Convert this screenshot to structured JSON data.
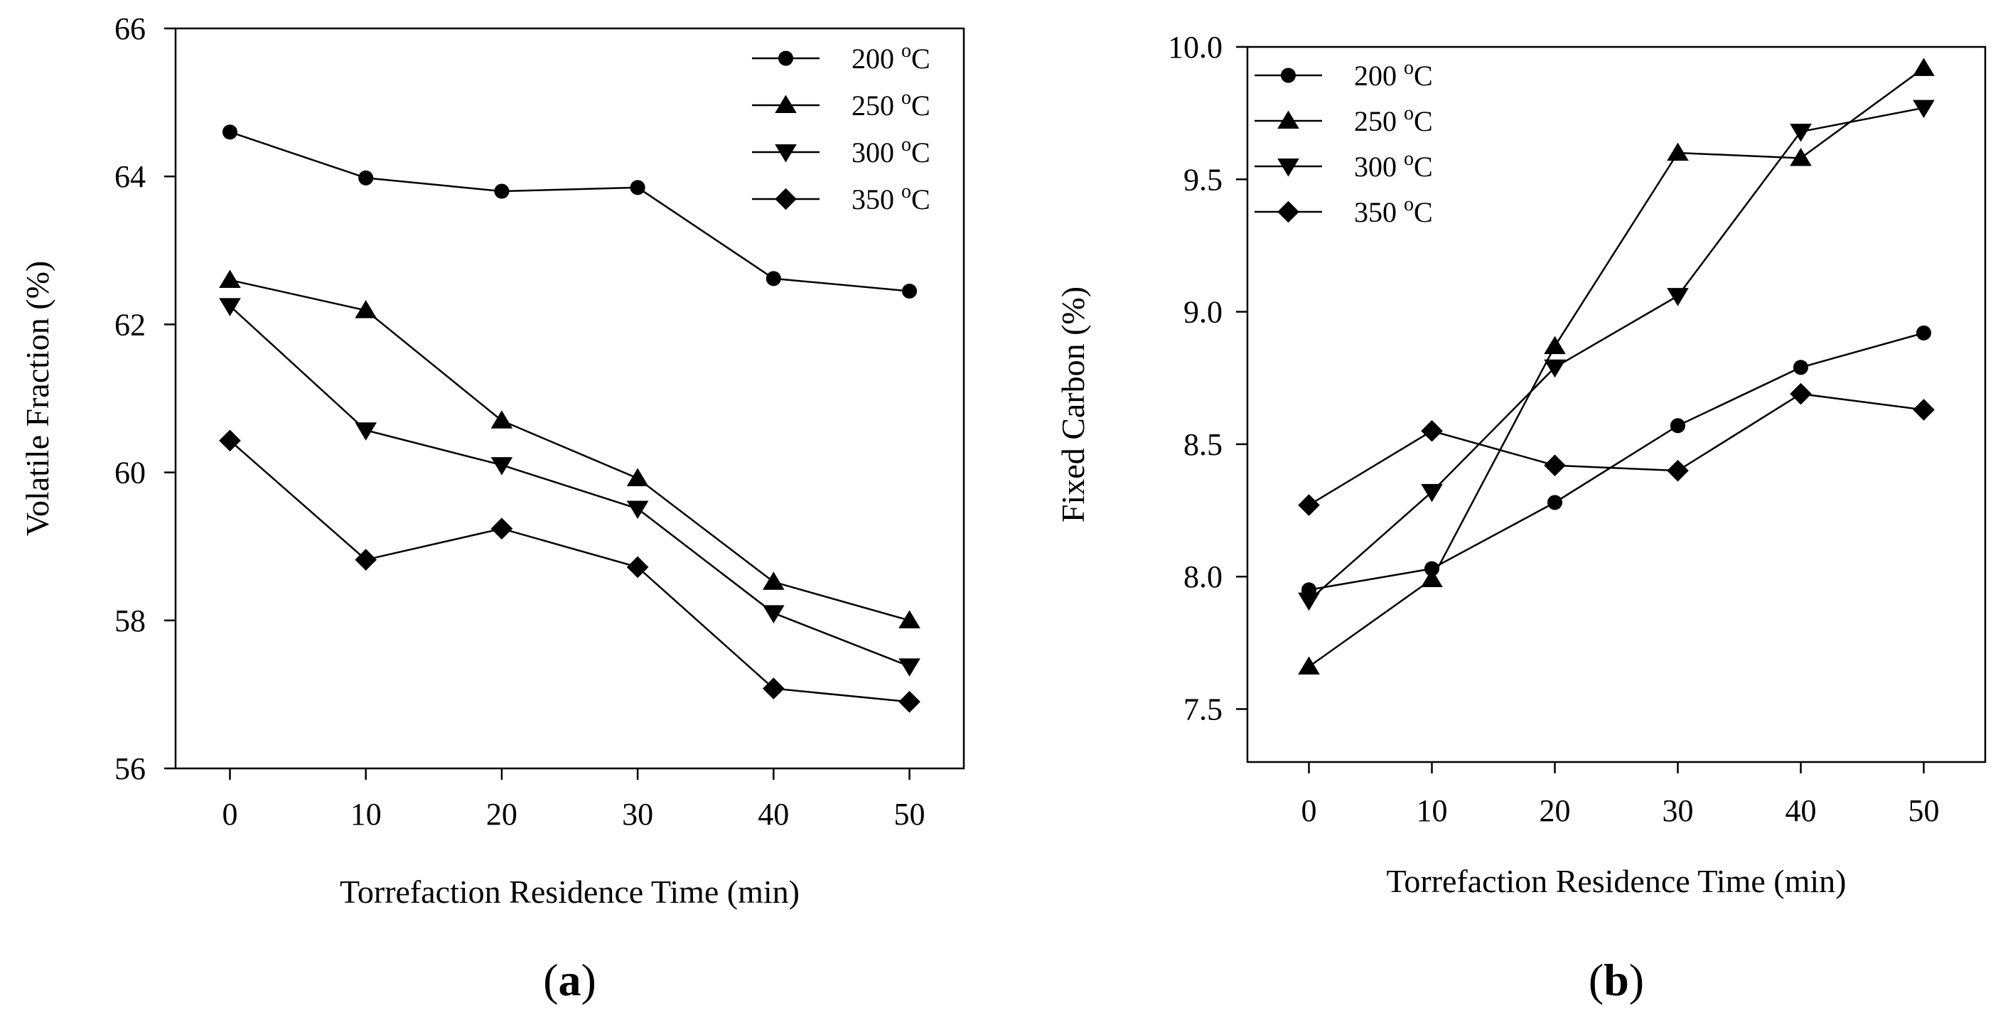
{
  "chart_data": [
    {
      "type": "line",
      "panel_label": "a",
      "xlabel": "Torrefaction Residence Time (min)",
      "ylabel": "Volatile Fraction (%)",
      "x": [
        0,
        10,
        20,
        30,
        40,
        50
      ],
      "xticks": [
        "0",
        "10",
        "20",
        "30",
        "40",
        "50"
      ],
      "xlim": [
        -4,
        54
      ],
      "yticks": [
        "56",
        "58",
        "60",
        "62",
        "64",
        "66"
      ],
      "ylim": [
        56,
        66
      ],
      "grid": false,
      "legend_position": "top-right",
      "series": [
        {
          "name": "200 °C",
          "marker": "circle",
          "values": [
            64.6,
            63.98,
            63.8,
            63.85,
            62.62,
            62.45
          ]
        },
        {
          "name": "250 °C",
          "marker": "triangle-up",
          "values": [
            62.6,
            62.19,
            60.7,
            59.92,
            58.52,
            58.0
          ]
        },
        {
          "name": "300 °C",
          "marker": "triangle-down",
          "values": [
            62.25,
            60.57,
            60.1,
            59.51,
            58.1,
            57.38
          ]
        },
        {
          "name": "350 °C",
          "marker": "diamond",
          "values": [
            60.43,
            58.82,
            59.24,
            58.72,
            57.08,
            56.9
          ]
        }
      ]
    },
    {
      "type": "line",
      "panel_label": "b",
      "xlabel": "Torrefaction Residence Time (min)",
      "ylabel": "Fixed Carbon (%)",
      "x": [
        0,
        10,
        20,
        30,
        40,
        50
      ],
      "xticks": [
        "0",
        "10",
        "20",
        "30",
        "40",
        "50"
      ],
      "xlim": [
        -5,
        55
      ],
      "yticks": [
        "7.5",
        "8.0",
        "8.5",
        "9.0",
        "9.5",
        "10.0"
      ],
      "ylim": [
        7.3,
        10.0
      ],
      "grid": false,
      "legend_position": "top-left",
      "series": [
        {
          "name": "200 °C",
          "marker": "circle",
          "values": [
            7.95,
            8.03,
            8.28,
            8.57,
            8.79,
            8.92
          ]
        },
        {
          "name": "250 °C",
          "marker": "triangle-up",
          "values": [
            7.66,
            7.99,
            8.87,
            9.6,
            9.58,
            9.92
          ]
        },
        {
          "name": "300 °C",
          "marker": "triangle-down",
          "values": [
            7.91,
            8.32,
            8.79,
            9.06,
            9.68,
            9.77
          ]
        },
        {
          "name": "350 °C",
          "marker": "diamond",
          "values": [
            8.27,
            8.55,
            8.42,
            8.4,
            8.69,
            8.63
          ]
        }
      ]
    }
  ]
}
